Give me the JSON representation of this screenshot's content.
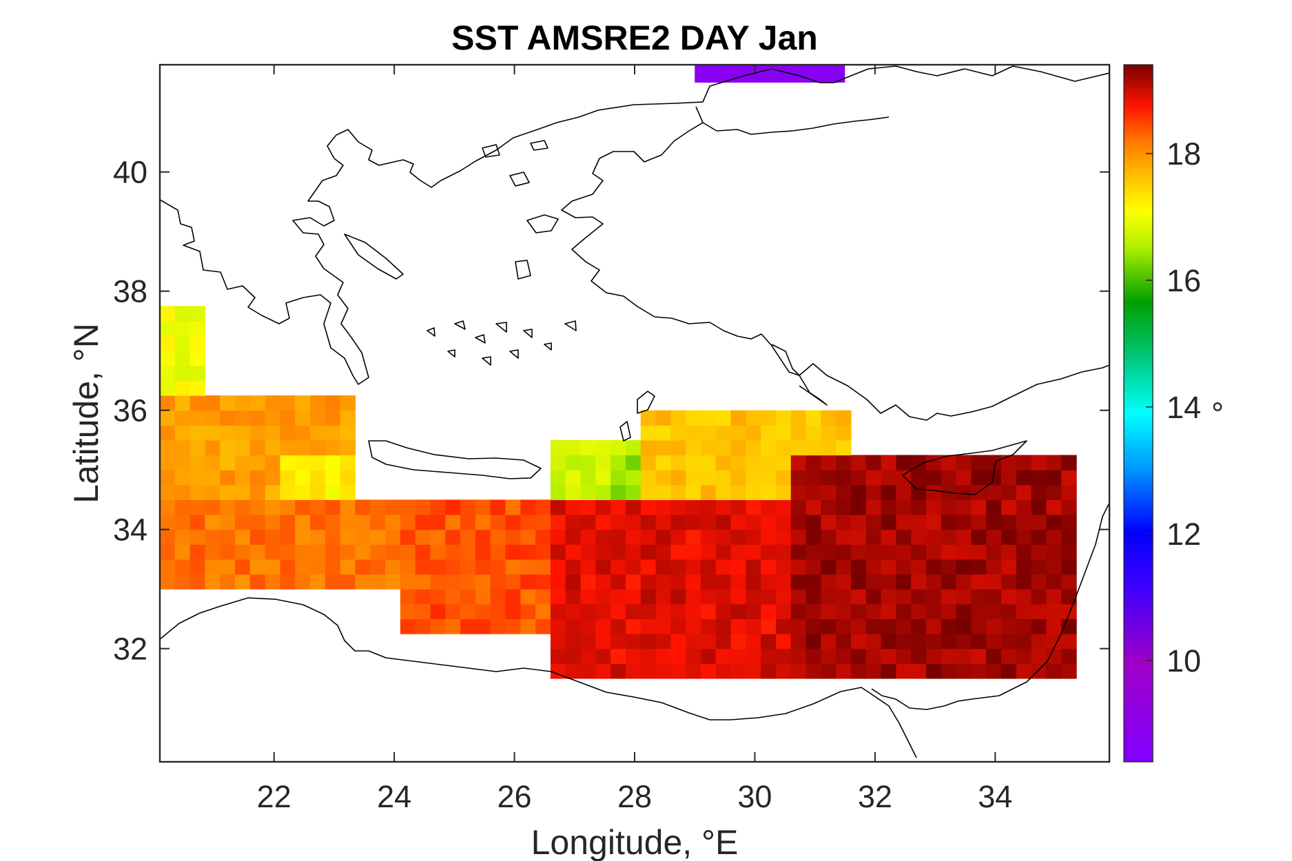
{
  "chart_data": {
    "type": "heatmap",
    "title": "SST AMSRE2 DAY Jan",
    "xlabel": "Longitude, °E",
    "ylabel": "Latitude, °N",
    "xlim": [
      20.1,
      35.9
    ],
    "ylim": [
      30.1,
      41.8
    ],
    "xticks": [
      22,
      24,
      26,
      28,
      30,
      32,
      34
    ],
    "yticks": [
      32,
      34,
      36,
      38,
      40
    ],
    "xtick_labels": [
      "22",
      "24",
      "26",
      "28",
      "30",
      "32",
      "34"
    ],
    "ytick_labels": [
      "32",
      "34",
      "36",
      "38",
      "40"
    ],
    "colorbar": {
      "label": "°",
      "range": [
        8.4,
        19.4
      ],
      "ticks": [
        10,
        12,
        14,
        16,
        18
      ],
      "tick_labels": [
        "10",
        "12",
        "14",
        "16",
        "18"
      ],
      "colormap": "jet-like (purple → blue → cyan → green → yellow → orange → red → dark red)"
    },
    "grid": false,
    "cell_size_deg": 0.25,
    "value_bands": [
      {
        "lon": [
          20.1,
          20.9
        ],
        "lat": [
          35.0,
          37.8
        ],
        "value": 17.0
      },
      {
        "lon": [
          20.1,
          23.4
        ],
        "lat": [
          33.9,
          36.3
        ],
        "value": 17.9
      },
      {
        "lon": [
          22.1,
          23.4
        ],
        "lat": [
          34.2,
          35.2
        ],
        "value": 17.2
      },
      {
        "lon": [
          20.1,
          24.6
        ],
        "lat": [
          33.0,
          34.5
        ],
        "value": 18.2
      },
      {
        "lon": [
          24.2,
          27.0
        ],
        "lat": [
          32.3,
          34.5
        ],
        "value": 18.4
      },
      {
        "lon": [
          26.7,
          28.9
        ],
        "lat": [
          34.3,
          35.4
        ],
        "value": 16.7
      },
      {
        "lon": [
          27.5,
          28.6
        ],
        "lat": [
          34.5,
          35.2
        ],
        "value": 16.4
      },
      {
        "lon": [
          28.2,
          31.7
        ],
        "lat": [
          34.4,
          35.9
        ],
        "value": 17.6
      },
      {
        "lon": [
          26.5,
          32.2
        ],
        "lat": [
          31.5,
          34.4
        ],
        "value": 18.9
      },
      {
        "lon": [
          30.5,
          35.3
        ],
        "lat": [
          31.5,
          35.2
        ],
        "value": 19.2
      }
    ],
    "northern_patch": {
      "lon": [
        29.0,
        31.5
      ],
      "lat": [
        41.5,
        41.8
      ],
      "value": 8.8
    }
  }
}
